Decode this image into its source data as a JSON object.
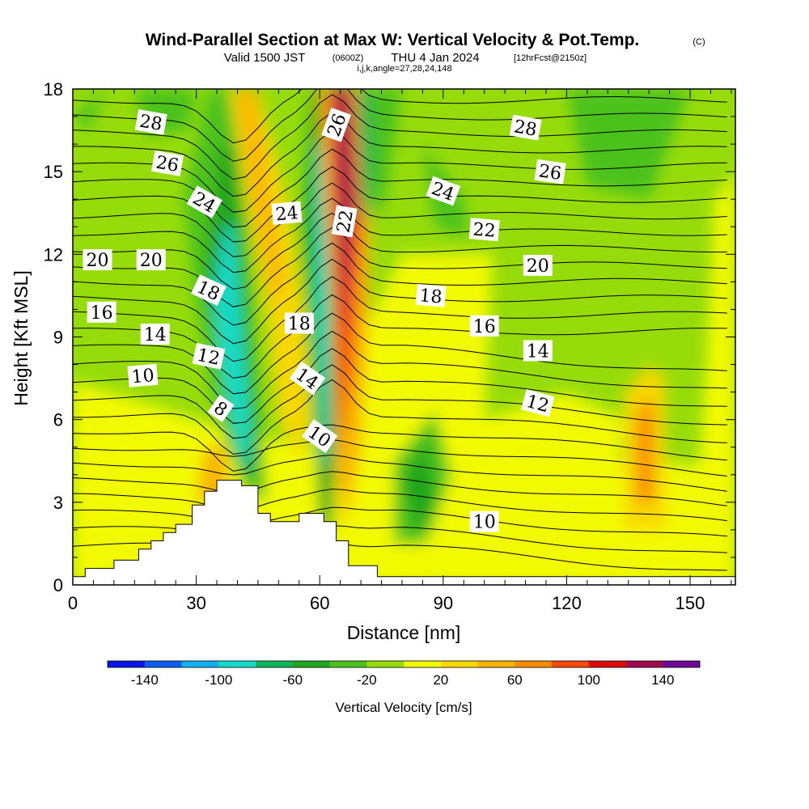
{
  "title": {
    "main": "Wind-Parallel Section at Max W: Vertical Velocity & Pot.Temp.",
    "main_units": "(C)",
    "valid_prefix": "Valid 1500 JST",
    "valid_utc": "(0600Z)",
    "valid_date": "THU 4 Jan 2024",
    "forecast": "[12hrFcst@2150z]",
    "indices": "i,j,k,angle=27,28,24,148"
  },
  "chart_data": {
    "type": "heatmap",
    "xlabel": "Distance [nm]",
    "ylabel": "Height [Kft MSL]",
    "xlim": [
      0,
      161
    ],
    "ylim": [
      0,
      18
    ],
    "x_ticks": [
      "0",
      "30",
      "60",
      "90",
      "120",
      "150"
    ],
    "y_ticks": [
      "0",
      "3",
      "6",
      "9",
      "12",
      "15",
      "18"
    ],
    "terrain": [
      [
        0,
        0.3
      ],
      [
        3,
        0.6
      ],
      [
        10,
        0.9
      ],
      [
        16,
        1.3
      ],
      [
        19,
        1.6
      ],
      [
        22,
        1.9
      ],
      [
        25,
        2.2
      ],
      [
        29,
        2.9
      ],
      [
        32,
        3.4
      ],
      [
        35,
        3.8
      ],
      [
        41,
        3.6
      ],
      [
        45,
        2.6
      ],
      [
        48,
        2.3
      ],
      [
        55,
        2.6
      ],
      [
        61,
        2.3
      ],
      [
        64,
        1.6
      ],
      [
        67,
        0.7
      ],
      [
        74,
        0.3
      ],
      [
        161,
        0.3
      ]
    ],
    "colorbar": {
      "title": "Vertical Velocity [cm/s]",
      "tick_labels": [
        "-140",
        "-100",
        "-60",
        "-20",
        "20",
        "60",
        "100",
        "140"
      ],
      "levels": [
        -160,
        -140,
        -120,
        -100,
        -80,
        -60,
        -40,
        -20,
        0,
        20,
        40,
        60,
        80,
        100,
        120,
        140,
        160
      ],
      "colors": [
        "#0a14e6",
        "#0c5ef0",
        "#12b0f0",
        "#12dcc8",
        "#10b45a",
        "#1ea61e",
        "#4cc21e",
        "#96dc0a",
        "#f2fa00",
        "#f8d800",
        "#fab400",
        "#fa8a00",
        "#f54a0a",
        "#dc0a0a",
        "#a00a50",
        "#6e0a96"
      ]
    },
    "velocity_features": [
      {
        "x": 40,
        "y": 9.5,
        "value": -90
      },
      {
        "x": 48,
        "y": 14,
        "value": 50
      },
      {
        "x": 64,
        "y": 13,
        "value": 130
      },
      {
        "x": 69,
        "y": 15,
        "value": -70
      },
      {
        "x": 84,
        "y": 4,
        "value": -45
      },
      {
        "x": 139,
        "y": 4.5,
        "value": 60
      },
      {
        "x": 130,
        "y": 15,
        "value": -25
      }
    ],
    "contour_labels": [
      {
        "text": "28",
        "x": 19,
        "y": 16.8,
        "angle": 10
      },
      {
        "text": "26",
        "x": 23,
        "y": 15.3,
        "angle": 10
      },
      {
        "text": "24",
        "x": 32,
        "y": 13.9,
        "angle": 30
      },
      {
        "text": "20",
        "x": 6,
        "y": 11.8,
        "angle": 0
      },
      {
        "text": "20",
        "x": 19,
        "y": 11.8,
        "angle": 0
      },
      {
        "text": "16",
        "x": 7,
        "y": 9.9,
        "angle": 0
      },
      {
        "text": "14",
        "x": 20,
        "y": 9.1,
        "angle": 0
      },
      {
        "text": "12",
        "x": 33,
        "y": 8.3,
        "angle": 12
      },
      {
        "text": "10",
        "x": 17,
        "y": 7.6,
        "angle": -5
      },
      {
        "text": "18",
        "x": 33,
        "y": 10.7,
        "angle": 25
      },
      {
        "text": "8",
        "x": 36,
        "y": 6.4,
        "angle": 35
      },
      {
        "text": "24",
        "x": 52,
        "y": 13.5,
        "angle": -5
      },
      {
        "text": "18",
        "x": 55,
        "y": 9.5,
        "angle": 0
      },
      {
        "text": "14",
        "x": 57,
        "y": 7.5,
        "angle": 35
      },
      {
        "text": "10",
        "x": 60,
        "y": 5.4,
        "angle": 35
      },
      {
        "text": "26",
        "x": 64,
        "y": 16.7,
        "angle": -70
      },
      {
        "text": "22",
        "x": 66,
        "y": 13.2,
        "angle": -80
      },
      {
        "text": "28",
        "x": 110,
        "y": 16.6,
        "angle": 10
      },
      {
        "text": "26",
        "x": 116,
        "y": 15.0,
        "angle": 8
      },
      {
        "text": "24",
        "x": 90,
        "y": 14.3,
        "angle": 20
      },
      {
        "text": "22",
        "x": 100,
        "y": 12.9,
        "angle": 5
      },
      {
        "text": "20",
        "x": 113,
        "y": 11.6,
        "angle": 0
      },
      {
        "text": "18",
        "x": 87,
        "y": 10.5,
        "angle": 5
      },
      {
        "text": "16",
        "x": 100,
        "y": 9.4,
        "angle": 0
      },
      {
        "text": "14",
        "x": 113,
        "y": 8.5,
        "angle": 0
      },
      {
        "text": "12",
        "x": 113,
        "y": 6.6,
        "angle": 15
      },
      {
        "text": "10",
        "x": 100,
        "y": 2.3,
        "angle": 0
      }
    ]
  }
}
